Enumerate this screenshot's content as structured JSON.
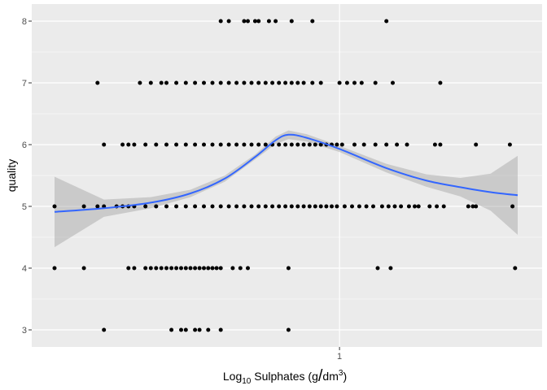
{
  "chart_data": {
    "type": "scatter",
    "title": "",
    "xlabel": {
      "prefix": "Log",
      "sub": "10",
      "mid": " Sulphates (g",
      "slash": "/",
      "unit": "dm",
      "sup": "3",
      "suffix": ")"
    },
    "ylabel": "quality",
    "x_scale": "log10",
    "xlim": [
      0.33,
      2.0
    ],
    "ylim": [
      2.75,
      8.25
    ],
    "x_ticks": [
      1
    ],
    "x_tick_labels": [
      "1"
    ],
    "y_ticks": [
      3,
      4,
      5,
      6,
      7,
      8
    ],
    "y_tick_labels": [
      "3",
      "4",
      "5",
      "6",
      "7",
      "8"
    ],
    "grid": true,
    "legend": "none",
    "colors": {
      "panel": "#ebebeb",
      "grid": "#ffffff",
      "points": "#000000",
      "smooth": "#3366ff",
      "ribbon": "#999999"
    },
    "points": [
      {
        "quality": 3,
        "x": [
          0.4,
          0.52,
          0.54,
          0.55,
          0.57,
          0.58,
          0.6,
          0.63,
          0.82
        ]
      },
      {
        "quality": 4,
        "x": [
          0.33,
          0.37,
          0.44,
          0.45,
          0.47,
          0.48,
          0.49,
          0.5,
          0.51,
          0.52,
          0.53,
          0.54,
          0.55,
          0.56,
          0.57,
          0.58,
          0.59,
          0.6,
          0.61,
          0.62,
          0.63,
          0.66,
          0.68,
          0.7,
          0.82,
          1.16,
          1.22,
          1.98
        ]
      },
      {
        "quality": 5,
        "x": [
          0.33,
          0.37,
          0.39,
          0.4,
          0.42,
          0.43,
          0.44,
          0.45,
          0.47,
          0.49,
          0.51,
          0.53,
          0.55,
          0.57,
          0.59,
          0.61,
          0.63,
          0.65,
          0.67,
          0.69,
          0.71,
          0.73,
          0.75,
          0.77,
          0.79,
          0.81,
          0.83,
          0.85,
          0.87,
          0.89,
          0.91,
          0.93,
          0.95,
          0.97,
          0.99,
          1.02,
          1.05,
          1.08,
          1.11,
          1.14,
          1.18,
          1.21,
          1.24,
          1.27,
          1.31,
          1.34,
          1.36,
          1.42,
          1.46,
          1.5,
          1.65,
          1.68,
          1.7,
          1.96
        ]
      },
      {
        "quality": 6,
        "x": [
          0.4,
          0.43,
          0.44,
          0.45,
          0.47,
          0.49,
          0.51,
          0.53,
          0.55,
          0.57,
          0.59,
          0.61,
          0.63,
          0.65,
          0.67,
          0.69,
          0.71,
          0.73,
          0.75,
          0.77,
          0.79,
          0.81,
          0.83,
          0.85,
          0.87,
          0.89,
          0.91,
          0.93,
          0.95,
          0.97,
          0.99,
          1.01,
          1.06,
          1.1,
          1.15,
          1.2,
          1.25,
          1.3,
          1.45,
          1.48,
          1.7,
          1.94
        ]
      },
      {
        "quality": 7,
        "x": [
          0.39,
          0.46,
          0.48,
          0.5,
          0.51,
          0.53,
          0.55,
          0.57,
          0.59,
          0.61,
          0.63,
          0.65,
          0.67,
          0.69,
          0.71,
          0.73,
          0.75,
          0.77,
          0.79,
          0.81,
          0.83,
          0.85,
          0.87,
          0.9,
          0.93,
          1.0,
          1.03,
          1.06,
          1.09,
          1.15,
          1.23,
          1.48
        ]
      },
      {
        "quality": 8,
        "x": [
          0.63,
          0.65,
          0.69,
          0.7,
          0.72,
          0.73,
          0.76,
          0.78,
          0.83,
          0.9,
          1.2
        ]
      }
    ],
    "smooth": {
      "x": [
        0.33,
        0.4,
        0.48,
        0.56,
        0.64,
        0.72,
        0.78,
        0.82,
        0.88,
        1.0,
        1.2,
        1.4,
        1.6,
        1.8,
        2.0
      ],
      "y": [
        4.91,
        4.97,
        5.06,
        5.21,
        5.45,
        5.8,
        6.07,
        6.16,
        6.11,
        5.93,
        5.62,
        5.42,
        5.31,
        5.23,
        5.18
      ],
      "lower": [
        4.34,
        4.83,
        4.97,
        5.15,
        5.4,
        5.76,
        6.01,
        6.09,
        6.05,
        5.88,
        5.55,
        5.32,
        5.16,
        4.93,
        4.54
      ],
      "upper": [
        5.48,
        5.11,
        5.15,
        5.27,
        5.5,
        5.84,
        6.13,
        6.23,
        6.17,
        5.98,
        5.69,
        5.52,
        5.46,
        5.53,
        5.82
      ]
    }
  }
}
